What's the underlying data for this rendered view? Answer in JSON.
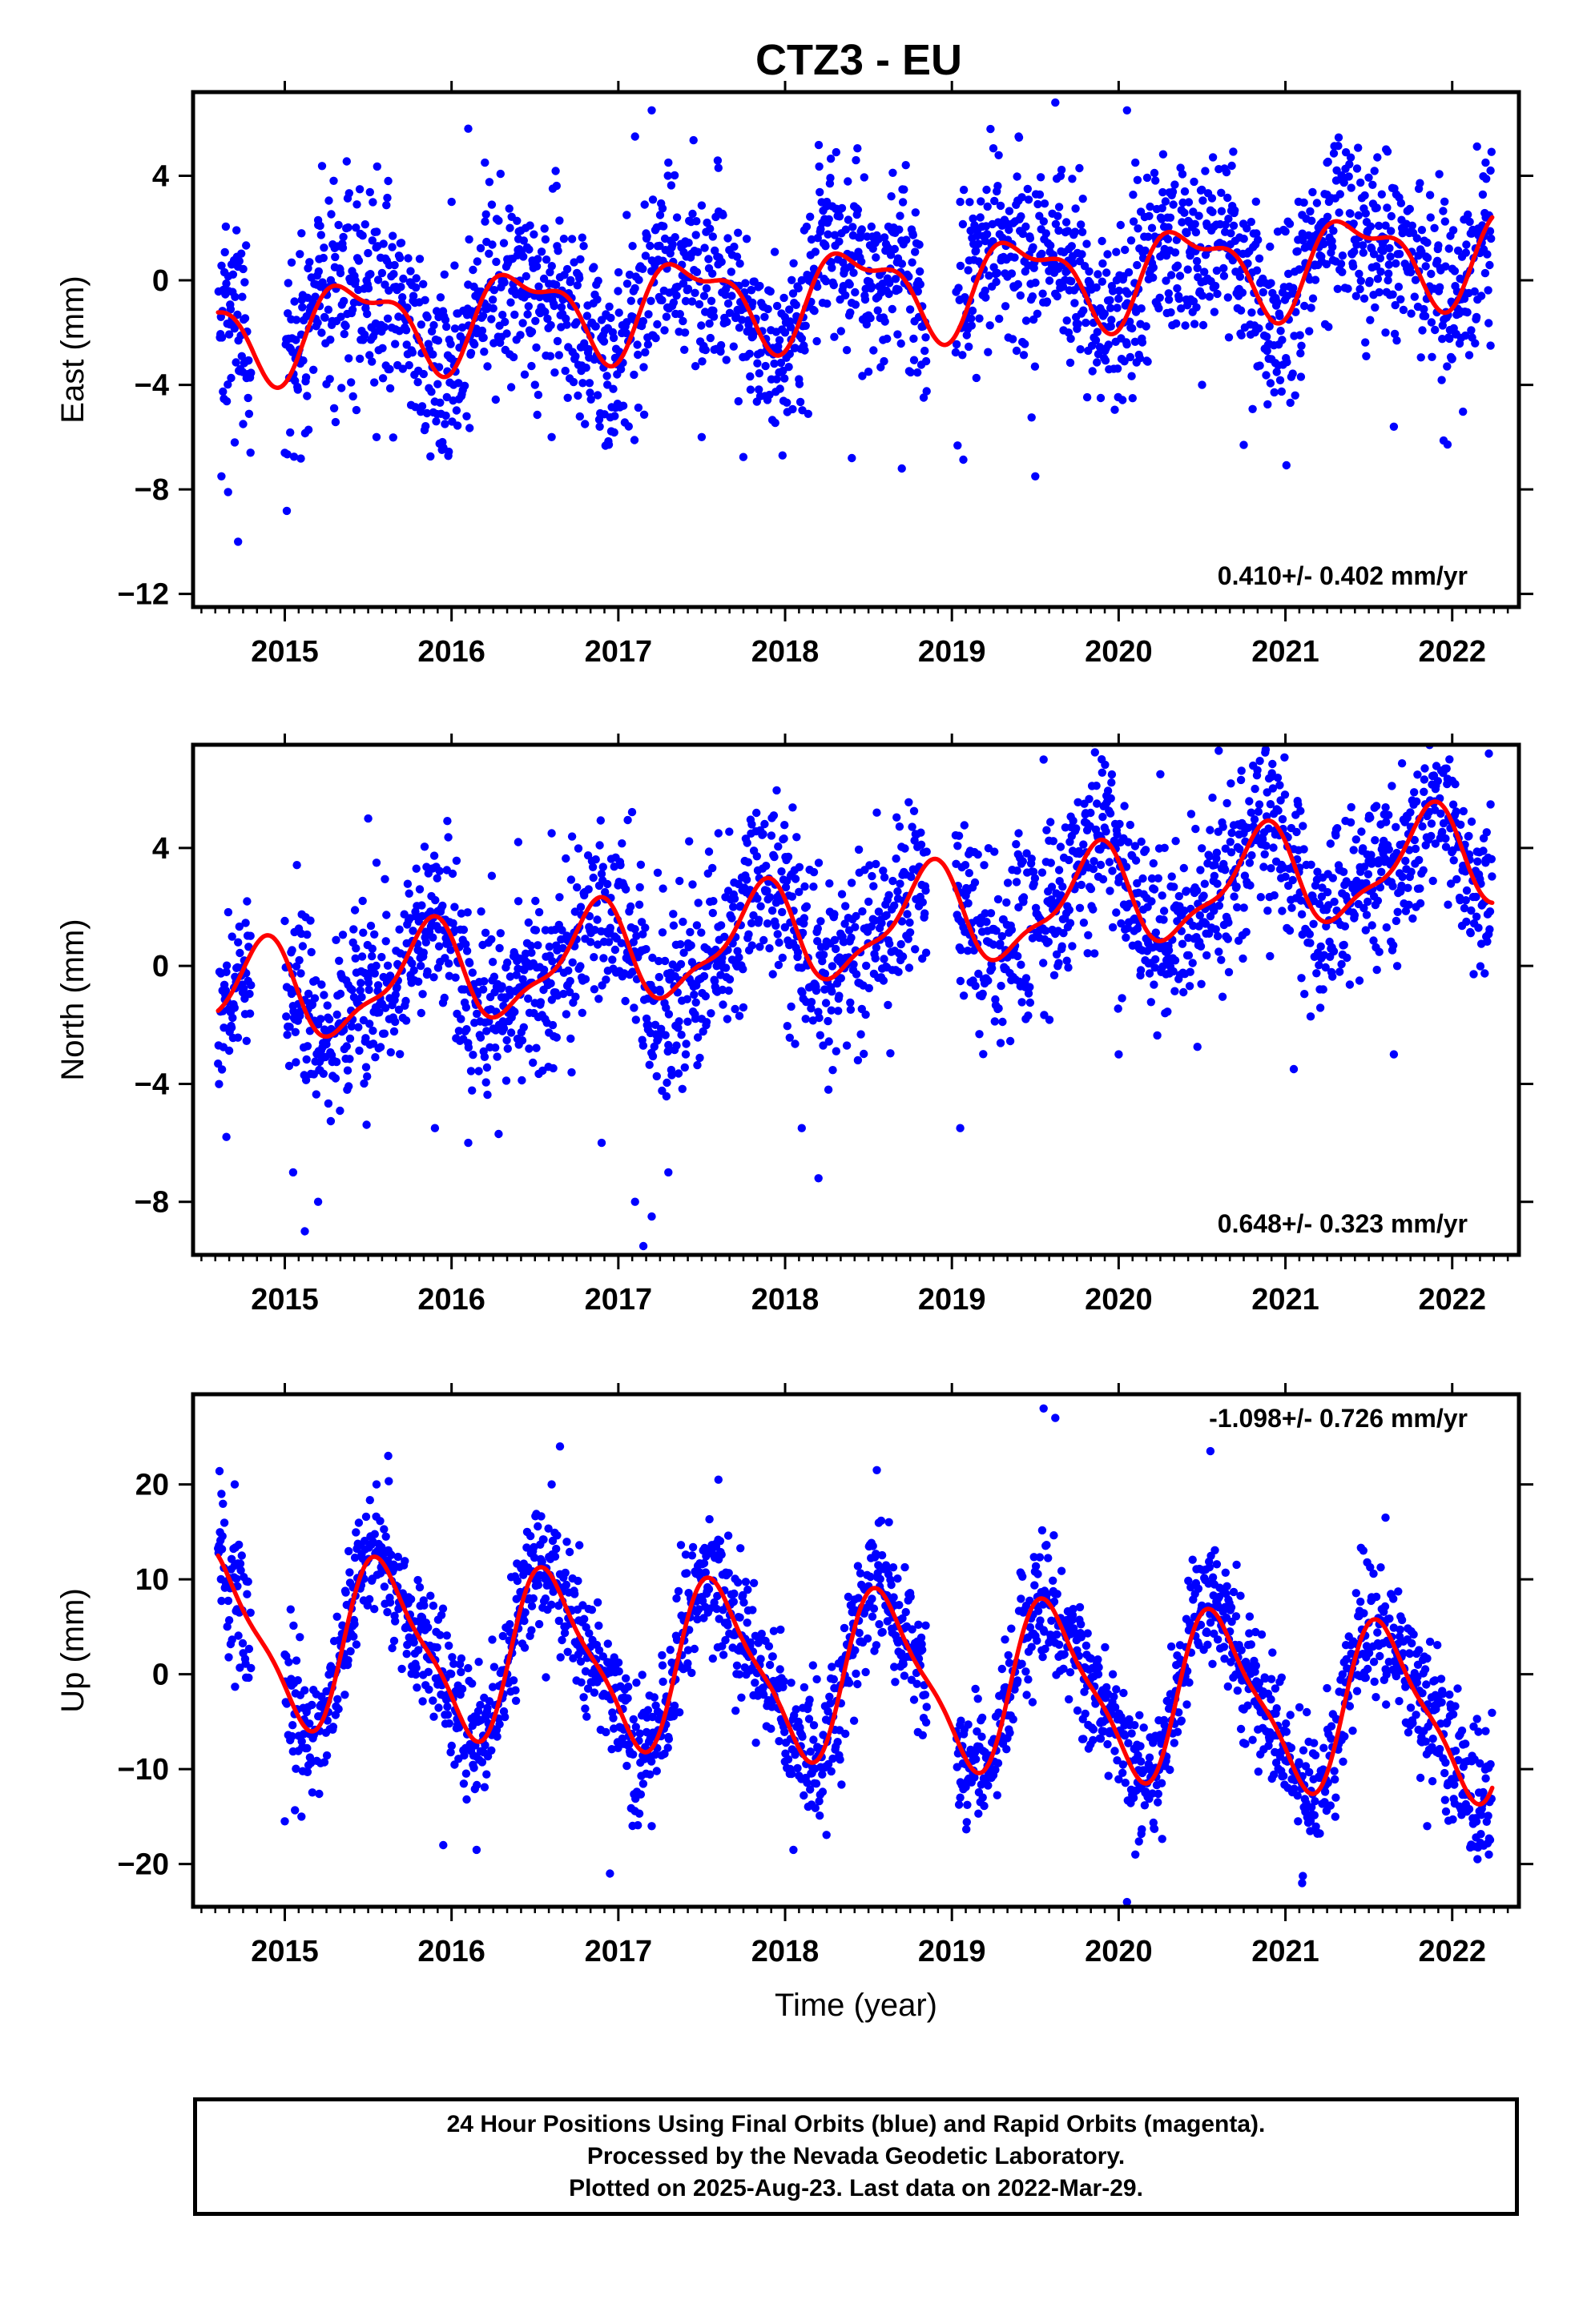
{
  "title": "CTZ3 - EU",
  "xlabel": "Time (year)",
  "footer": {
    "line1": "24 Hour Positions Using Final Orbits (blue) and Rapid Orbits (magenta).",
    "line2": "Processed by the Nevada Geodetic Laboratory.",
    "line3": "Plotted on 2025-Aug-23. Last data on 2022-Mar-29."
  },
  "colors": {
    "points": "#0000ff",
    "fit": "#ff0000",
    "axes": "#000000"
  },
  "chart_data": [
    {
      "type": "scatter",
      "component": "east",
      "ylabel": "East (mm)",
      "rate_label": "0.410+/- 0.402 mm/yr",
      "rate_position": "bottom-right",
      "xlim": [
        2014.45,
        2022.4
      ],
      "ylim": [
        -12.5,
        7.2
      ],
      "yticks": [
        -12,
        -8,
        -4,
        0,
        4
      ],
      "xticks": [
        2015,
        2016,
        2017,
        2018,
        2019,
        2020,
        2021,
        2022
      ],
      "data_span": [
        2014.6,
        2022.24
      ],
      "grid": false,
      "fit_params": {
        "offset": -2.0,
        "trend": 0.41,
        "a1": 1.6,
        "p1": 0.18,
        "a2": 0.7,
        "p2": 0.1
      },
      "scatter_sd": 1.8,
      "points": [
        [
          2014.62,
          -7.5
        ],
        [
          2014.66,
          -8.1
        ],
        [
          2014.7,
          -6.2
        ],
        [
          2014.72,
          -10.0
        ],
        [
          2014.75,
          -5.5
        ],
        [
          2014.78,
          -4.5
        ],
        [
          2015.1,
          1.8
        ],
        [
          2015.2,
          2.3
        ],
        [
          2015.3,
          0.5
        ],
        [
          2015.45,
          -3.0
        ],
        [
          2015.55,
          -6.0
        ],
        [
          2015.62,
          3.8
        ],
        [
          2016.0,
          3.0
        ],
        [
          2016.1,
          5.8
        ],
        [
          2016.2,
          4.5
        ],
        [
          2016.35,
          2.0
        ],
        [
          2016.5,
          -4.0
        ],
        [
          2016.6,
          -6.0
        ],
        [
          2016.8,
          -5.5
        ],
        [
          2017.05,
          2.5
        ],
        [
          2017.1,
          5.5
        ],
        [
          2017.2,
          6.5
        ],
        [
          2017.3,
          4.5
        ],
        [
          2017.4,
          -2.0
        ],
        [
          2017.5,
          -6.0
        ],
        [
          2017.6,
          4.3
        ],
        [
          2017.8,
          -1.0
        ],
        [
          2018.0,
          -2.0
        ],
        [
          2018.1,
          0.0
        ],
        [
          2018.25,
          3.0
        ],
        [
          2018.4,
          -6.8
        ],
        [
          2018.5,
          -3.5
        ],
        [
          2018.7,
          -7.2
        ],
        [
          2019.05,
          3.0
        ],
        [
          2019.2,
          1.5
        ],
        [
          2019.4,
          5.5
        ],
        [
          2019.5,
          -7.5
        ],
        [
          2019.62,
          6.8
        ],
        [
          2019.7,
          -2.0
        ],
        [
          2019.9,
          1.5
        ],
        [
          2020.05,
          6.5
        ],
        [
          2020.1,
          4.5
        ],
        [
          2020.2,
          2.0
        ],
        [
          2020.3,
          -0.5
        ],
        [
          2020.5,
          -4.0
        ],
        [
          2020.75,
          -6.3
        ],
        [
          2020.9,
          -3.0
        ],
        [
          2021.1,
          2.5
        ],
        [
          2021.25,
          4.5
        ],
        [
          2021.4,
          1.0
        ],
        [
          2021.6,
          -2.0
        ],
        [
          2021.65,
          -5.6
        ],
        [
          2021.8,
          3.5
        ],
        [
          2021.95,
          -1.5
        ],
        [
          2022.0,
          -3.0
        ],
        [
          2022.2,
          4.5
        ],
        [
          2022.23,
          -2.5
        ]
      ]
    },
    {
      "type": "scatter",
      "component": "north",
      "ylabel": "North (mm)",
      "rate_label": "0.648+/- 0.323 mm/yr",
      "rate_position": "bottom-right",
      "xlim": [
        2014.45,
        2022.4
      ],
      "ylim": [
        -9.8,
        7.5
      ],
      "yticks": [
        -8,
        -4,
        0,
        4
      ],
      "xticks": [
        2015,
        2016,
        2017,
        2018,
        2019,
        2020,
        2021,
        2022
      ],
      "data_span": [
        2014.6,
        2022.24
      ],
      "grid": false,
      "fit_params": {
        "offset": -1.2,
        "trend": 0.648,
        "a1": 1.6,
        "p1": 0.6,
        "a2": 0.55,
        "p2": 0.3
      },
      "scatter_sd": 1.5,
      "points": [
        [
          2014.65,
          -5.8
        ],
        [
          2014.72,
          0.8
        ],
        [
          2015.05,
          -7.0
        ],
        [
          2015.12,
          -9.0
        ],
        [
          2015.2,
          -8.0
        ],
        [
          2015.5,
          5.0
        ],
        [
          2015.55,
          3.5
        ],
        [
          2015.9,
          -5.5
        ],
        [
          2016.1,
          -6.0
        ],
        [
          2016.4,
          4.2
        ],
        [
          2016.6,
          4.5
        ],
        [
          2016.9,
          -6.0
        ],
        [
          2017.1,
          -8.0
        ],
        [
          2017.15,
          -9.5
        ],
        [
          2017.2,
          -8.5
        ],
        [
          2017.3,
          -7.0
        ],
        [
          2017.6,
          4.5
        ],
        [
          2017.8,
          4.8
        ],
        [
          2018.1,
          -5.5
        ],
        [
          2018.2,
          -7.2
        ],
        [
          2018.55,
          5.2
        ],
        [
          2019.05,
          -5.5
        ],
        [
          2019.4,
          4.5
        ],
        [
          2019.55,
          7.0
        ],
        [
          2019.8,
          3.5
        ],
        [
          2020.0,
          -3.0
        ],
        [
          2020.25,
          6.5
        ],
        [
          2020.6,
          7.3
        ],
        [
          2020.75,
          4.5
        ],
        [
          2021.05,
          -3.5
        ],
        [
          2021.3,
          4.5
        ],
        [
          2021.5,
          5.0
        ],
        [
          2021.65,
          -3.0
        ],
        [
          2021.9,
          6.0
        ],
        [
          2022.22,
          7.2
        ],
        [
          2022.2,
          3.5
        ]
      ]
    },
    {
      "type": "scatter",
      "component": "up",
      "ylabel": "Up (mm)",
      "rate_label": "-1.098+/- 0.726 mm/yr",
      "rate_position": "top-right",
      "xlim": [
        2014.45,
        2022.4
      ],
      "ylim": [
        -24.5,
        29.5
      ],
      "yticks": [
        -20,
        -10,
        0,
        10,
        20
      ],
      "xticks": [
        2015,
        2016,
        2017,
        2018,
        2019,
        2020,
        2021,
        2022
      ],
      "data_span": [
        2014.6,
        2022.24
      ],
      "grid": false,
      "fit_params": {
        "offset": 4.0,
        "trend": -1.098,
        "a1": 8.5,
        "p1": 0.35,
        "a2": 2.2,
        "p2": 0.35
      },
      "scatter_sd": 3.5,
      "points": [
        [
          2014.62,
          19.0
        ],
        [
          2014.7,
          20.0
        ],
        [
          2015.0,
          -15.5
        ],
        [
          2015.1,
          -15.0
        ],
        [
          2015.55,
          20.0
        ],
        [
          2015.62,
          23.0
        ],
        [
          2015.95,
          -18.0
        ],
        [
          2016.15,
          -18.5
        ],
        [
          2016.6,
          20.0
        ],
        [
          2016.65,
          24.0
        ],
        [
          2016.95,
          -21.0
        ],
        [
          2017.2,
          -16.0
        ],
        [
          2017.6,
          20.5
        ],
        [
          2018.05,
          -18.5
        ],
        [
          2018.55,
          21.5
        ],
        [
          2019.05,
          -13.0
        ],
        [
          2019.55,
          28.0
        ],
        [
          2019.62,
          27.0
        ],
        [
          2020.05,
          -24.0
        ],
        [
          2020.1,
          -19.0
        ],
        [
          2020.55,
          23.5
        ],
        [
          2021.1,
          -22.0
        ],
        [
          2021.6,
          16.5
        ],
        [
          2021.85,
          -16.0
        ],
        [
          2022.22,
          -19.0
        ],
        [
          2022.2,
          -6.0
        ]
      ]
    }
  ]
}
